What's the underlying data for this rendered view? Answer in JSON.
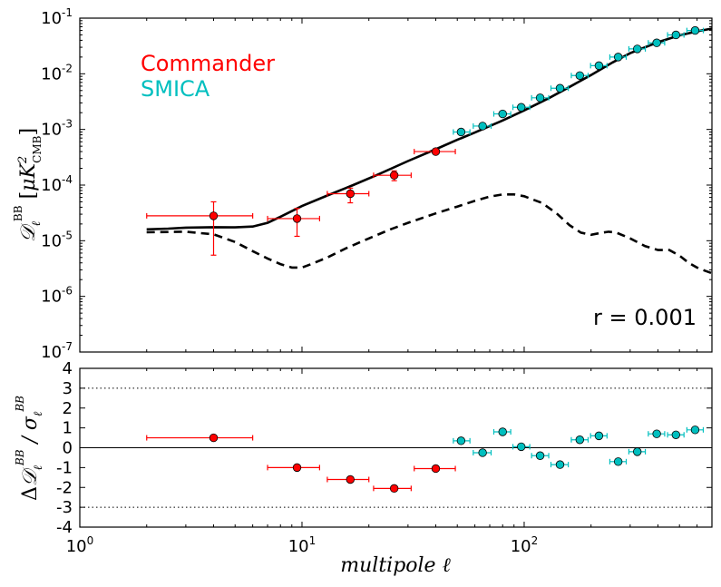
{
  "colors": {
    "commander": "#ff0000",
    "smica": "#00bfbf",
    "model": "#000000",
    "face": "#ffffff"
  },
  "chart_data": [
    {
      "type": "scatter",
      "panel": "top",
      "xscale": "log",
      "yscale": "log",
      "xlim": [
        1,
        700
      ],
      "ylim": [
        1e-07,
        0.1
      ],
      "xlabel": "multipole ℓ",
      "ylabel": "D_ℓ^BB [μK²_CMB]",
      "yticks": [
        {
          "base": "10",
          "exp": "-7",
          "value": 1e-07
        },
        {
          "base": "10",
          "exp": "-6",
          "value": 1e-06
        },
        {
          "base": "10",
          "exp": "-5",
          "value": 1e-05
        },
        {
          "base": "10",
          "exp": "-4",
          "value": 0.0001
        },
        {
          "base": "10",
          "exp": "-3",
          "value": 0.001
        },
        {
          "base": "10",
          "exp": "-2",
          "value": 0.01
        },
        {
          "base": "10",
          "exp": "-1",
          "value": 0.1
        }
      ],
      "legend": [
        "Commander",
        "SMICA"
      ],
      "legend_location": "upper-left",
      "annotation": "r = 0.001",
      "annotation_location": "lower-right",
      "series": [
        {
          "name": "Commander",
          "color": "#ff0000",
          "points": [
            {
              "x": 4,
              "y": 2.8e-05,
              "xlo": 2,
              "xhi": 6,
              "ylo": 5.5e-06,
              "yhi": 5e-05
            },
            {
              "x": 9.5,
              "y": 2.5e-05,
              "xlo": 7,
              "xhi": 12,
              "ylo": 1.2e-05,
              "yhi": 3.8e-05
            },
            {
              "x": 16.5,
              "y": 7e-05,
              "xlo": 13,
              "xhi": 20,
              "ylo": 4.8e-05,
              "yhi": 8.8e-05
            },
            {
              "x": 26,
              "y": 0.00015,
              "xlo": 21,
              "xhi": 31,
              "ylo": 0.00012,
              "yhi": 0.00018
            },
            {
              "x": 40,
              "y": 0.0004,
              "xlo": 32,
              "xhi": 49,
              "ylo": 0.00036,
              "yhi": 0.00045
            }
          ]
        },
        {
          "name": "SMICA",
          "color": "#00bfbf",
          "points": [
            {
              "x": 52,
              "y": 0.0009,
              "xlo": 48,
              "xhi": 57,
              "ylo": 0.0008,
              "yhi": 0.001
            },
            {
              "x": 65,
              "y": 0.00115,
              "xlo": 59,
              "xhi": 71,
              "ylo": 0.00105,
              "yhi": 0.00125
            },
            {
              "x": 80,
              "y": 0.0019,
              "xlo": 73,
              "xhi": 87,
              "ylo": 0.0018,
              "yhi": 0.002
            },
            {
              "x": 97,
              "y": 0.0025,
              "xlo": 89,
              "xhi": 106,
              "ylo": 0.0024,
              "yhi": 0.0026
            },
            {
              "x": 118,
              "y": 0.0037,
              "xlo": 108,
              "xhi": 129,
              "ylo": 0.00355,
              "yhi": 0.00385
            },
            {
              "x": 145,
              "y": 0.0055,
              "xlo": 132,
              "xhi": 158,
              "ylo": 0.0053,
              "yhi": 0.0057
            },
            {
              "x": 178,
              "y": 0.0093,
              "xlo": 163,
              "xhi": 194,
              "ylo": 0.009,
              "yhi": 0.0096
            },
            {
              "x": 217,
              "y": 0.014,
              "xlo": 199,
              "xhi": 236,
              "ylo": 0.0135,
              "yhi": 0.0145
            },
            {
              "x": 265,
              "y": 0.02,
              "xlo": 243,
              "xhi": 288,
              "ylo": 0.0195,
              "yhi": 0.0205
            },
            {
              "x": 323,
              "y": 0.028,
              "xlo": 296,
              "xhi": 351,
              "ylo": 0.0275,
              "yhi": 0.0285
            },
            {
              "x": 395,
              "y": 0.036,
              "xlo": 362,
              "xhi": 429,
              "ylo": 0.0355,
              "yhi": 0.0365
            },
            {
              "x": 482,
              "y": 0.05,
              "xlo": 442,
              "xhi": 524,
              "ylo": 0.049,
              "yhi": 0.051
            },
            {
              "x": 588,
              "y": 0.06,
              "xlo": 540,
              "xhi": 640,
              "ylo": 0.059,
              "yhi": 0.061
            }
          ]
        }
      ],
      "lines": [
        {
          "name": "total (lensing + r=0.001)",
          "style": "solid",
          "color": "#000000",
          "points": [
            [
              2,
              1.6e-05
            ],
            [
              2.5,
              1.65e-05
            ],
            [
              3,
              1.72e-05
            ],
            [
              4,
              1.75e-05
            ],
            [
              5,
              1.74e-05
            ],
            [
              6,
              1.8e-05
            ],
            [
              7,
              2.1e-05
            ],
            [
              8,
              2.7e-05
            ],
            [
              10,
              4.2e-05
            ],
            [
              13,
              6.5e-05
            ],
            [
              17,
              0.0001
            ],
            [
              22,
              0.000155
            ],
            [
              30,
              0.00027
            ],
            [
              40,
              0.00044
            ],
            [
              50,
              0.00065
            ],
            [
              60,
              0.00088
            ],
            [
              70,
              0.00115
            ],
            [
              80,
              0.00145
            ],
            [
              100,
              0.0022
            ],
            [
              130,
              0.0037
            ],
            [
              160,
              0.0058
            ],
            [
              200,
              0.0095
            ],
            [
              250,
              0.016
            ],
            [
              300,
              0.0235
            ],
            [
              400,
              0.037
            ],
            [
              500,
              0.049
            ],
            [
              600,
              0.058
            ],
            [
              700,
              0.065
            ]
          ]
        },
        {
          "name": "tensor r = 0.001",
          "style": "dashed",
          "color": "#000000",
          "points": [
            [
              2,
              1.42e-05
            ],
            [
              3,
              1.45e-05
            ],
            [
              4,
              1.3e-05
            ],
            [
              5,
              9.5e-06
            ],
            [
              6,
              6.5e-06
            ],
            [
              7,
              4.8e-06
            ],
            [
              8,
              3.8e-06
            ],
            [
              9,
              3.3e-06
            ],
            [
              10,
              3.3e-06
            ],
            [
              11,
              3.8e-06
            ],
            [
              13,
              5e-06
            ],
            [
              16,
              7.5e-06
            ],
            [
              20,
              1.1e-05
            ],
            [
              25,
              1.6e-05
            ],
            [
              30,
              2.1e-05
            ],
            [
              40,
              3.1e-05
            ],
            [
              50,
              4.1e-05
            ],
            [
              60,
              5.2e-05
            ],
            [
              70,
              6.2e-05
            ],
            [
              80,
              6.8e-05
            ],
            [
              90,
              6.8e-05
            ],
            [
              100,
              6.3e-05
            ],
            [
              120,
              4.8e-05
            ],
            [
              140,
              3.1e-05
            ],
            [
              160,
              1.9e-05
            ],
            [
              180,
              1.4e-05
            ],
            [
              200,
              1.28e-05
            ],
            [
              220,
              1.38e-05
            ],
            [
              240,
              1.45e-05
            ],
            [
              260,
              1.4e-05
            ],
            [
              300,
              1.1e-05
            ],
            [
              350,
              8e-06
            ],
            [
              400,
              6.8e-06
            ],
            [
              450,
              6.8e-06
            ],
            [
              500,
              5.4e-06
            ],
            [
              550,
              4e-06
            ],
            [
              600,
              3.3e-06
            ],
            [
              650,
              2.9e-06
            ],
            [
              700,
              2.6e-06
            ]
          ]
        }
      ]
    },
    {
      "type": "scatter",
      "panel": "bottom",
      "xscale": "log",
      "yscale": "linear",
      "xlim": [
        1,
        700
      ],
      "ylim": [
        -4,
        4
      ],
      "yticks": [
        "4",
        "3",
        "2",
        "1",
        "0",
        "-1",
        "-2",
        "-3",
        "-4"
      ],
      "xticks": [
        {
          "base": "10",
          "exp": "0",
          "value": 1
        },
        {
          "base": "10",
          "exp": "1",
          "value": 10
        },
        {
          "base": "10",
          "exp": "2",
          "value": 100
        }
      ],
      "xlabel": "multipole ℓ",
      "ylabel": "ΔD_ℓ^BB / σ_ℓ^BB",
      "reference_lines": [
        {
          "y": 0,
          "style": "solid"
        },
        {
          "y": 3,
          "style": "dotted"
        },
        {
          "y": -3,
          "style": "dotted"
        }
      ],
      "series": [
        {
          "name": "Commander",
          "color": "#ff0000",
          "points": [
            {
              "x": 4,
              "y": 0.5,
              "xlo": 2,
              "xhi": 6
            },
            {
              "x": 9.5,
              "y": -1.0,
              "xlo": 7,
              "xhi": 12
            },
            {
              "x": 16.5,
              "y": -1.6,
              "xlo": 13,
              "xhi": 20
            },
            {
              "x": 26,
              "y": -2.05,
              "xlo": 21,
              "xhi": 31
            },
            {
              "x": 40,
              "y": -1.05,
              "xlo": 32,
              "xhi": 49
            }
          ]
        },
        {
          "name": "SMICA",
          "color": "#00bfbf",
          "points": [
            {
              "x": 52,
              "y": 0.35,
              "xlo": 48,
              "xhi": 57
            },
            {
              "x": 65,
              "y": -0.25,
              "xlo": 59,
              "xhi": 71
            },
            {
              "x": 80,
              "y": 0.8,
              "xlo": 73,
              "xhi": 87
            },
            {
              "x": 97,
              "y": 0.05,
              "xlo": 89,
              "xhi": 106
            },
            {
              "x": 118,
              "y": -0.4,
              "xlo": 108,
              "xhi": 129
            },
            {
              "x": 145,
              "y": -0.85,
              "xlo": 132,
              "xhi": 158
            },
            {
              "x": 178,
              "y": 0.4,
              "xlo": 163,
              "xhi": 194
            },
            {
              "x": 217,
              "y": 0.6,
              "xlo": 199,
              "xhi": 236
            },
            {
              "x": 265,
              "y": -0.7,
              "xlo": 243,
              "xhi": 288
            },
            {
              "x": 323,
              "y": -0.2,
              "xlo": 296,
              "xhi": 351
            },
            {
              "x": 395,
              "y": 0.7,
              "xlo": 362,
              "xhi": 429
            },
            {
              "x": 482,
              "y": 0.65,
              "xlo": 442,
              "xhi": 524
            },
            {
              "x": 588,
              "y": 0.9,
              "xlo": 540,
              "xhi": 640
            }
          ]
        }
      ]
    }
  ]
}
